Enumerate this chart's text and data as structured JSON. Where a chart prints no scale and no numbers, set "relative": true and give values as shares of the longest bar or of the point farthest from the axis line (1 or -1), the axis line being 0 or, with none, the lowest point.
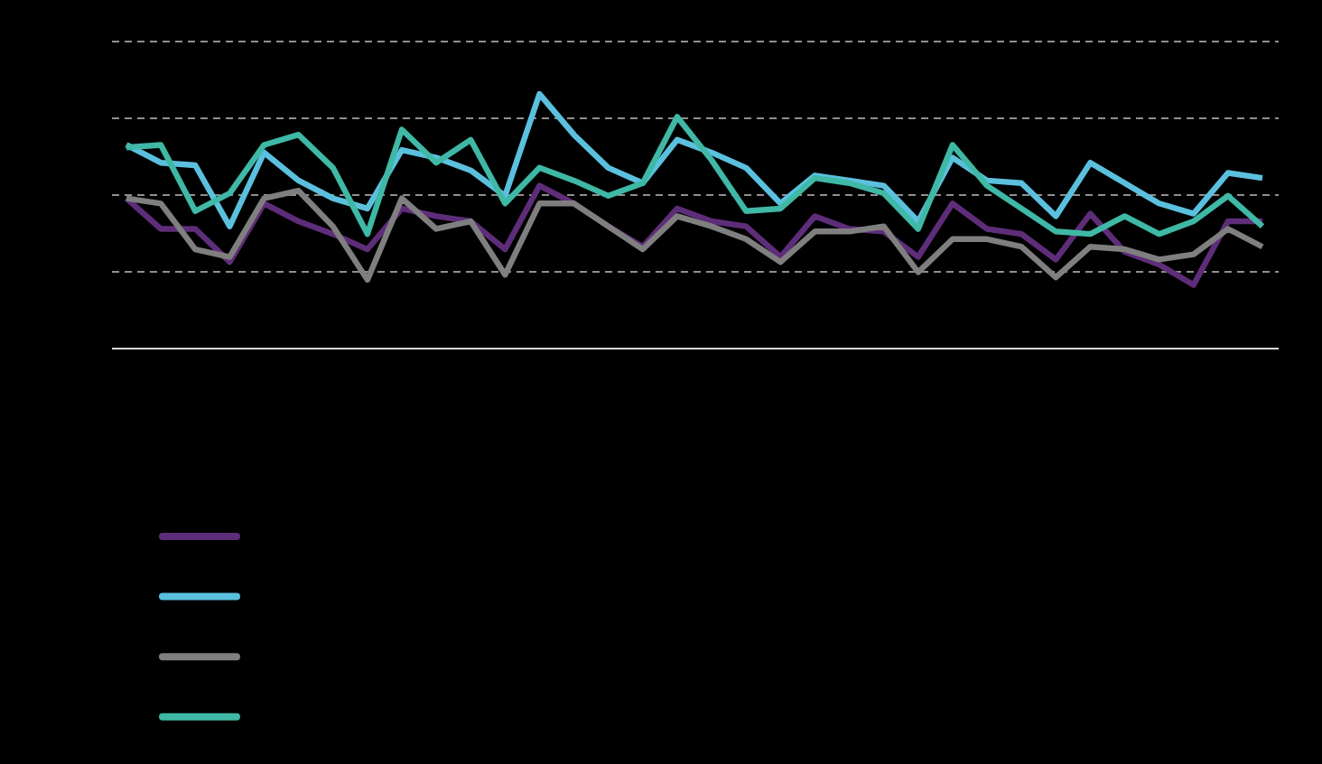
{
  "chart_data": {
    "type": "line",
    "relative": true,
    "grid": true,
    "line_style": "solid",
    "marker": "none",
    "categories": [
      null,
      null,
      null,
      null,
      null,
      null,
      null,
      null,
      null,
      null,
      null,
      null,
      null,
      null,
      null,
      null,
      null,
      null,
      null,
      null,
      null,
      null,
      null,
      null,
      null,
      null,
      null,
      null,
      null,
      null,
      null,
      null,
      null,
      null
    ],
    "series": [
      {
        "color": "#5e2d79",
        "values": [
          0.59,
          0.47,
          0.47,
          0.34,
          0.57,
          0.5,
          0.45,
          0.39,
          0.55,
          0.52,
          0.5,
          0.39,
          0.64,
          0.57,
          0.48,
          0.4,
          0.55,
          0.5,
          0.48,
          0.36,
          0.52,
          0.47,
          0.46,
          0.36,
          0.57,
          0.47,
          0.45,
          0.35,
          0.53,
          0.38,
          0.33,
          0.25,
          0.5,
          0.5
        ]
      },
      {
        "color": "#5bc0de",
        "values": [
          0.8,
          0.73,
          0.72,
          0.48,
          0.77,
          0.66,
          0.59,
          0.55,
          0.78,
          0.75,
          0.7,
          0.6,
          1,
          0.84,
          0.71,
          0.65,
          0.82,
          0.77,
          0.71,
          0.57,
          0.68,
          0.66,
          0.64,
          0.5,
          0.75,
          0.66,
          0.65,
          0.52,
          0.73,
          0.65,
          0.57,
          0.53,
          0.69,
          0.67
        ]
      },
      {
        "color": "#7f7f7f",
        "values": [
          0.59,
          0.57,
          0.39,
          0.36,
          0.59,
          0.62,
          0.48,
          0.27,
          0.59,
          0.47,
          0.5,
          0.29,
          0.57,
          0.57,
          0.48,
          0.39,
          0.52,
          0.48,
          0.43,
          0.34,
          0.46,
          0.46,
          0.48,
          0.3,
          0.43,
          0.43,
          0.4,
          0.28,
          0.4,
          0.39,
          0.35,
          0.37,
          0.47,
          0.4
        ]
      },
      {
        "color": "#3fb8a6",
        "values": [
          0.79,
          0.8,
          0.54,
          0.61,
          0.8,
          0.84,
          0.71,
          0.45,
          0.86,
          0.73,
          0.82,
          0.57,
          0.71,
          0.66,
          0.6,
          0.65,
          0.91,
          0.74,
          0.54,
          0.55,
          0.67,
          0.65,
          0.61,
          0.47,
          0.8,
          0.64,
          0.55,
          0.46,
          0.45,
          0.52,
          0.45,
          0.5,
          0.6,
          0.48
        ]
      }
    ]
  }
}
